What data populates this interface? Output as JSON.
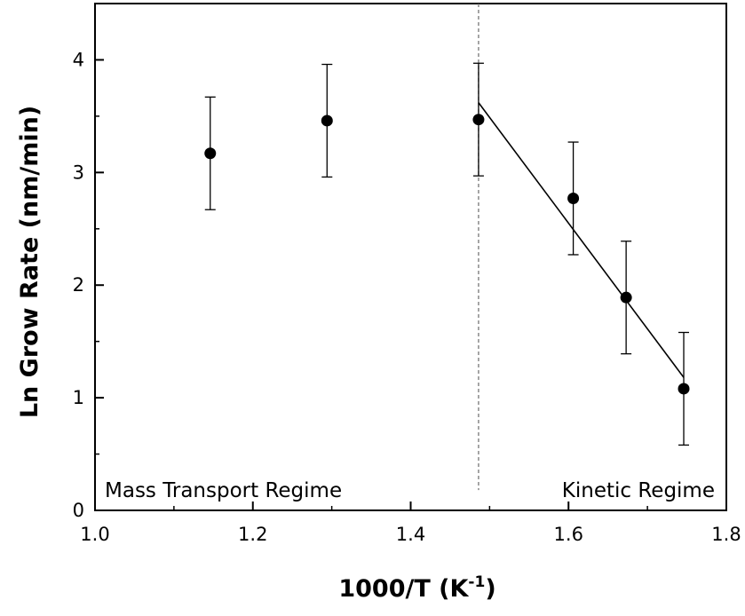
{
  "chart_data": {
    "type": "scatter",
    "xlabel_base": "1000/T (K",
    "xlabel_sup": "-1",
    "xlabel_end": ")",
    "ylabel": "Ln Grow Rate (nm/min)",
    "xlim": [
      1.0,
      1.8
    ],
    "ylim": [
      0,
      4.5
    ],
    "x_ticks": [
      1.0,
      1.2,
      1.4,
      1.6,
      1.8
    ],
    "x_tick_labels": [
      "1.0",
      "1.2",
      "1.4",
      "1.6",
      "1.8"
    ],
    "y_ticks": [
      0,
      1,
      2,
      3,
      4
    ],
    "y_tick_labels": [
      "0",
      "1",
      "2",
      "3",
      "4"
    ],
    "points": [
      {
        "x": 1.146,
        "y": 3.17,
        "err": 0.5
      },
      {
        "x": 1.294,
        "y": 3.46,
        "err": 0.5
      },
      {
        "x": 1.486,
        "y": 3.47,
        "err": 0.5
      },
      {
        "x": 1.606,
        "y": 2.77,
        "err": 0.5
      },
      {
        "x": 1.673,
        "y": 1.89,
        "err": 0.5
      },
      {
        "x": 1.746,
        "y": 1.08,
        "err": 0.5
      }
    ],
    "fit_line": {
      "x": [
        1.486,
        1.746
      ],
      "y": [
        3.62,
        1.18
      ]
    },
    "vline": {
      "x": 1.486,
      "y_range": [
        0.18,
        4.5
      ],
      "style": "dashed"
    },
    "annotations": {
      "left": "Mass Transport Regime",
      "right": "Kinetic Regime"
    }
  }
}
